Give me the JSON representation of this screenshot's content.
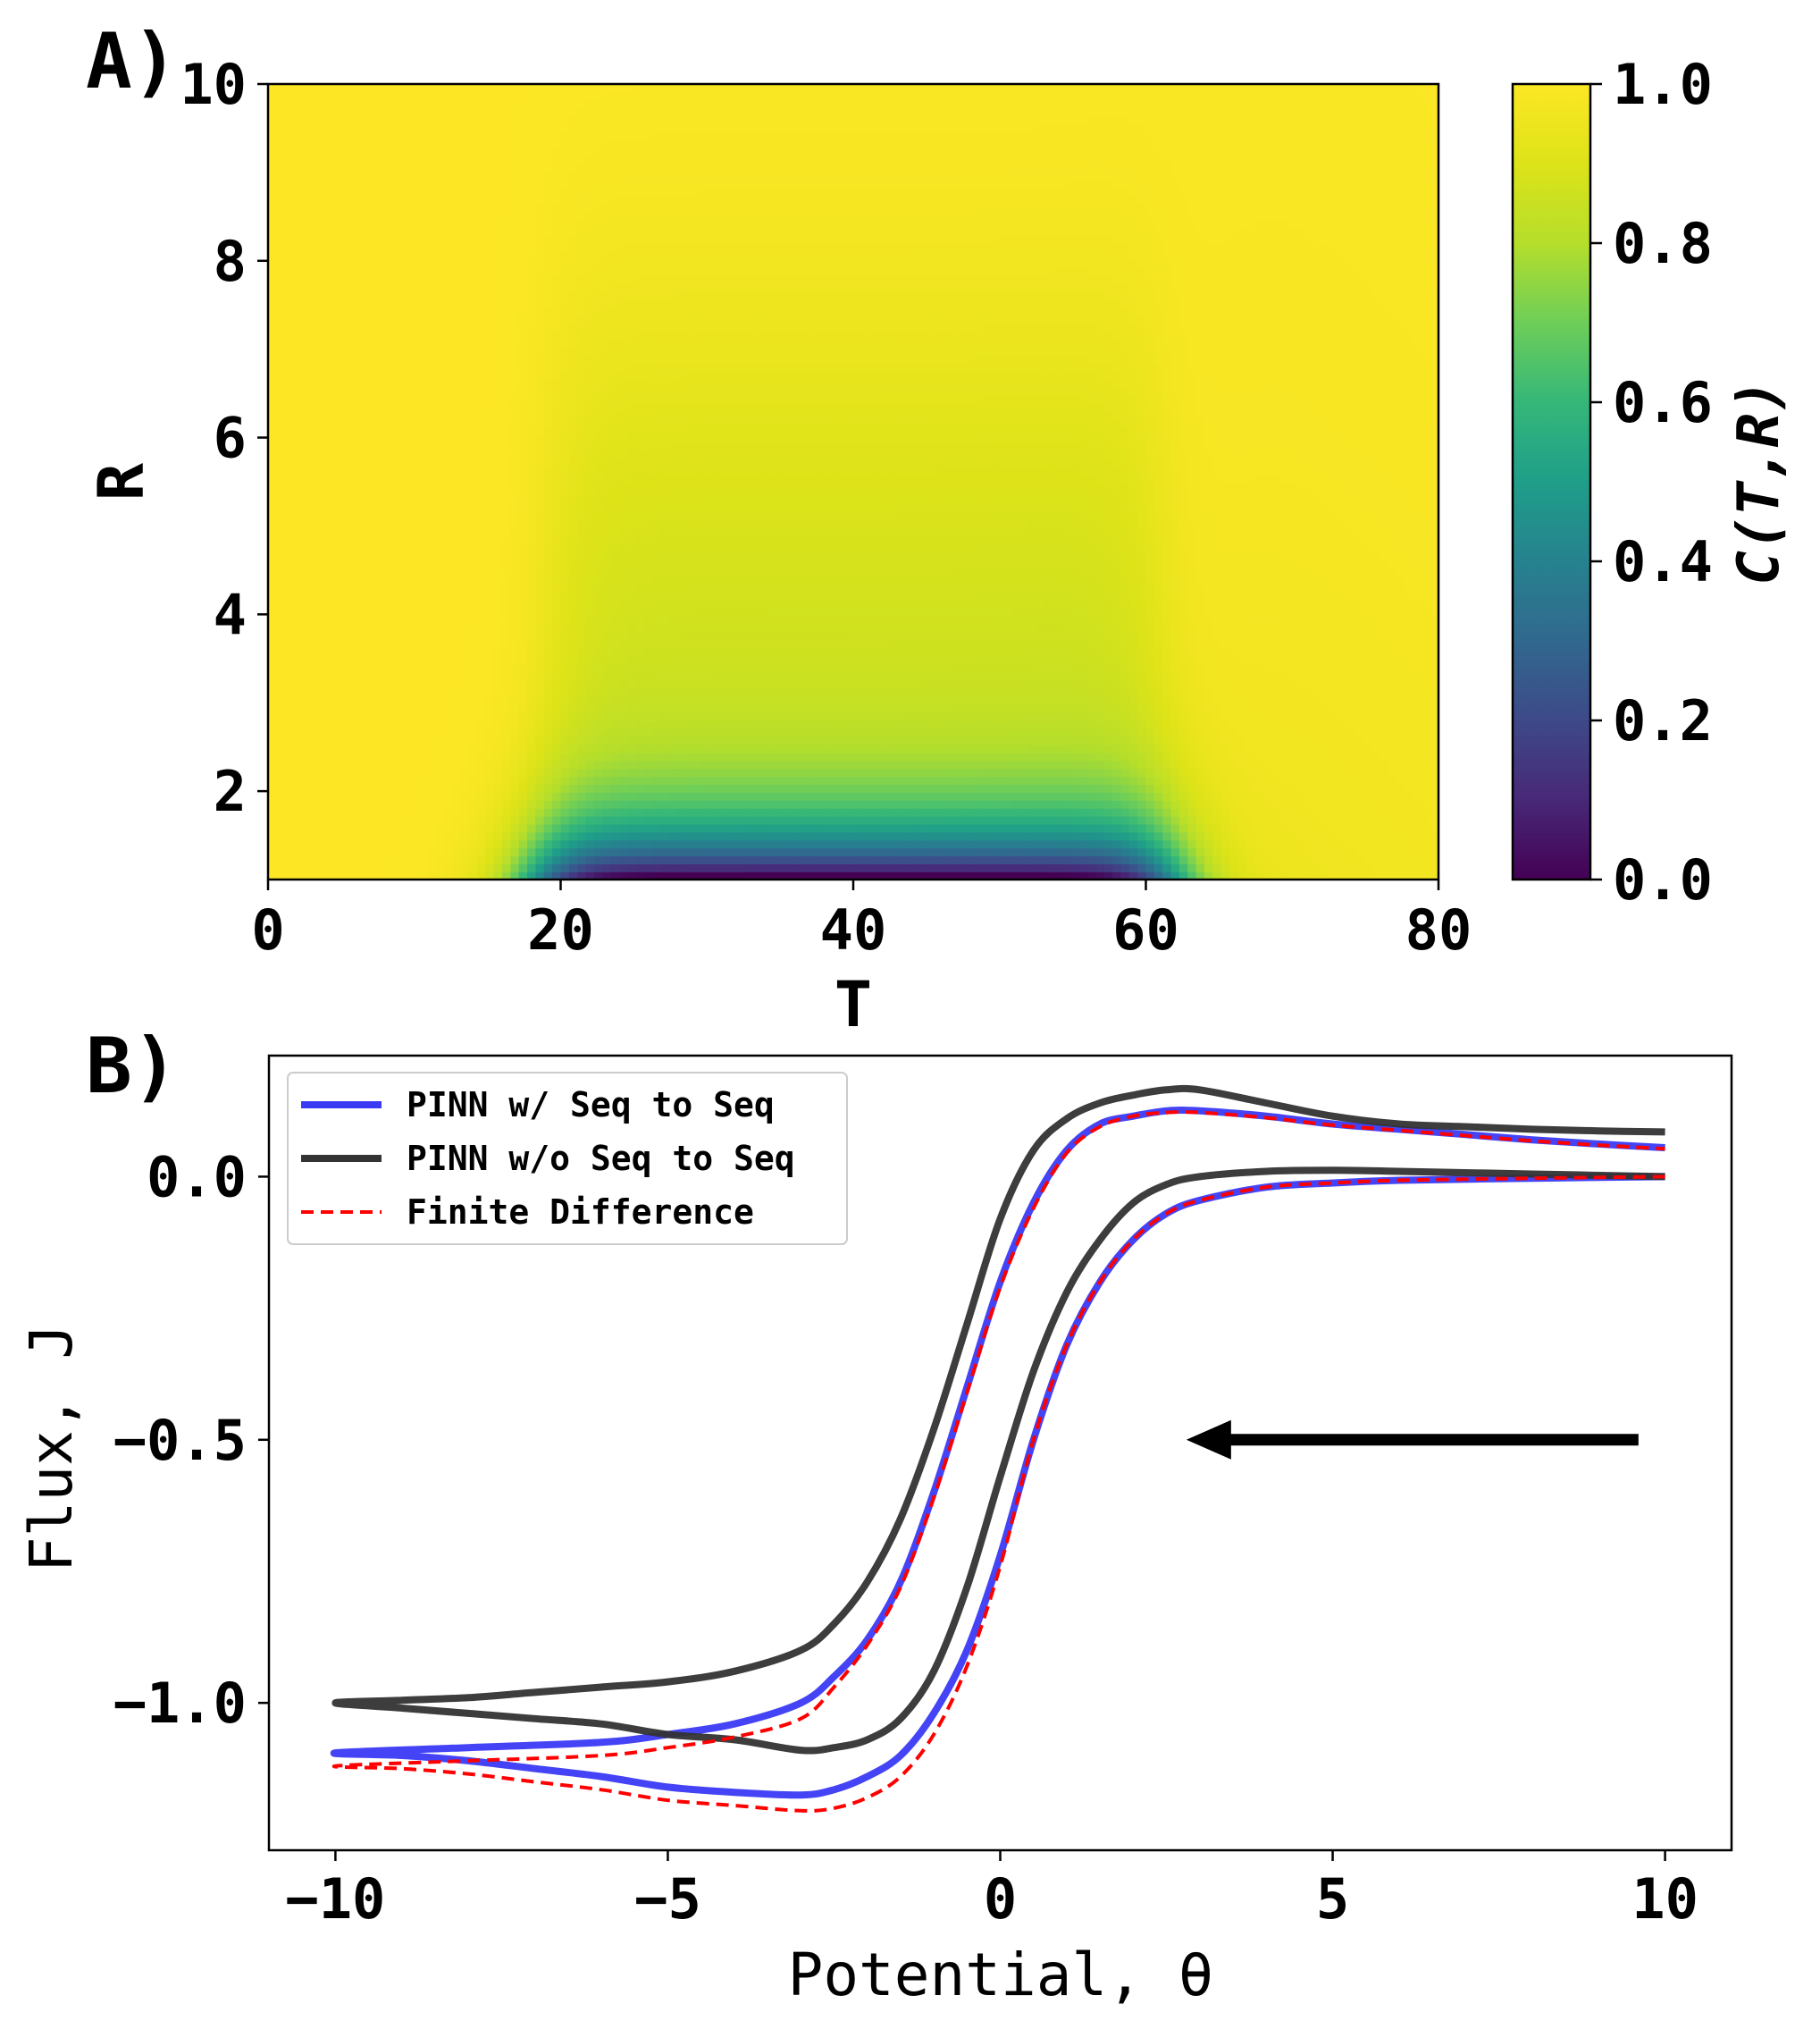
{
  "chart_data": [
    {
      "panel_label": "A)",
      "type": "heatmap",
      "xlabel": "T",
      "ylabel": "R",
      "xlim": [
        0,
        80
      ],
      "ylim": [
        1,
        10
      ],
      "xticks": [
        0,
        20,
        40,
        60,
        80
      ],
      "xtick_labels": [
        "0",
        "20",
        "40",
        "60",
        "80"
      ],
      "yticks": [
        2,
        4,
        6,
        8,
        10
      ],
      "ytick_labels": [
        "2",
        "4",
        "6",
        "8",
        "10"
      ],
      "colormap": "viridis",
      "colorbar": {
        "label": "C(T,R)",
        "range": [
          0,
          1
        ],
        "ticks": [
          0,
          0.2,
          0.4,
          0.6,
          0.8,
          1.0
        ],
        "tick_labels": [
          "0.0",
          "0.2",
          "0.4",
          "0.6",
          "0.8",
          "1.0"
        ]
      },
      "depletion_region": {
        "T_start": 18,
        "T_end": 62,
        "min_value_at_R1": 0.0
      }
    },
    {
      "panel_label": "B)",
      "type": "line",
      "xlabel": "Potential, θ",
      "ylabel": "Flux, J",
      "xlim": [
        -11,
        11
      ],
      "ylim": [
        -1.28,
        0.23
      ],
      "xticks": [
        -10,
        -5,
        0,
        5,
        10
      ],
      "xtick_labels": [
        "−10",
        "−5",
        "0",
        "5",
        "10"
      ],
      "yticks": [
        -1.0,
        -0.5,
        0.0
      ],
      "ytick_labels": [
        "−1.0",
        "−0.5",
        "0.0"
      ],
      "legend_position": "upper-left",
      "arrow": {
        "from": [
          9.6,
          -0.5
        ],
        "to": [
          2.8,
          -0.5
        ],
        "color": "#000000"
      },
      "series": [
        {
          "name": "PINN w/ Seq to Seq",
          "color": "#3a3af5",
          "style": "solid",
          "forward": [
            [
              10,
              0
            ],
            [
              8,
              -0.003
            ],
            [
              6,
              -0.007
            ],
            [
              5,
              -0.012
            ],
            [
              4,
              -0.02
            ],
            [
              3,
              -0.045
            ],
            [
              2.5,
              -0.07
            ],
            [
              2,
              -0.12
            ],
            [
              1.5,
              -0.2
            ],
            [
              1,
              -0.32
            ],
            [
              0.5,
              -0.5
            ],
            [
              0,
              -0.72
            ],
            [
              -0.5,
              -0.9
            ],
            [
              -1,
              -1.02
            ],
            [
              -1.5,
              -1.1
            ],
            [
              -2,
              -1.14
            ],
            [
              -2.5,
              -1.165
            ],
            [
              -3,
              -1.175
            ],
            [
              -4,
              -1.17
            ],
            [
              -5,
              -1.16
            ],
            [
              -6,
              -1.14
            ],
            [
              -7,
              -1.125
            ],
            [
              -8,
              -1.11
            ],
            [
              -9,
              -1.1
            ],
            [
              -10,
              -1.095
            ]
          ],
          "reverse": [
            [
              -10,
              -1.095
            ],
            [
              -8,
              -1.085
            ],
            [
              -6,
              -1.075
            ],
            [
              -5,
              -1.06
            ],
            [
              -4,
              -1.04
            ],
            [
              -3,
              -1.0
            ],
            [
              -2.5,
              -0.95
            ],
            [
              -2,
              -0.88
            ],
            [
              -1.5,
              -0.77
            ],
            [
              -1,
              -0.6
            ],
            [
              -0.5,
              -0.4
            ],
            [
              0,
              -0.2
            ],
            [
              0.5,
              -0.05
            ],
            [
              1,
              0.05
            ],
            [
              1.5,
              0.1
            ],
            [
              2,
              0.115
            ],
            [
              2.5,
              0.125
            ],
            [
              3,
              0.125
            ],
            [
              4,
              0.115
            ],
            [
              5,
              0.1
            ],
            [
              6,
              0.09
            ],
            [
              7,
              0.08
            ],
            [
              8,
              0.07
            ],
            [
              9,
              0.062
            ],
            [
              10,
              0.055
            ]
          ]
        },
        {
          "name": "PINN w/o Seq to Seq",
          "color": "#333333",
          "style": "solid",
          "forward": [
            [
              10,
              0
            ],
            [
              8,
              0.005
            ],
            [
              6,
              0.01
            ],
            [
              5,
              0.012
            ],
            [
              4,
              0.01
            ],
            [
              3,
              0.0
            ],
            [
              2.5,
              -0.015
            ],
            [
              2,
              -0.05
            ],
            [
              1.5,
              -0.12
            ],
            [
              1,
              -0.22
            ],
            [
              0.5,
              -0.37
            ],
            [
              0,
              -0.57
            ],
            [
              -0.5,
              -0.78
            ],
            [
              -1,
              -0.94
            ],
            [
              -1.5,
              -1.03
            ],
            [
              -2,
              -1.07
            ],
            [
              -2.5,
              -1.085
            ],
            [
              -3,
              -1.09
            ],
            [
              -4,
              -1.07
            ],
            [
              -5,
              -1.06
            ],
            [
              -6,
              -1.04
            ],
            [
              -7,
              -1.03
            ],
            [
              -8,
              -1.02
            ],
            [
              -9,
              -1.01
            ],
            [
              -10,
              -1.0
            ]
          ],
          "reverse": [
            [
              -10,
              -1.0
            ],
            [
              -9,
              -0.995
            ],
            [
              -8,
              -0.99
            ],
            [
              -7,
              -0.98
            ],
            [
              -6,
              -0.97
            ],
            [
              -5,
              -0.96
            ],
            [
              -4,
              -0.94
            ],
            [
              -3,
              -0.9
            ],
            [
              -2.5,
              -0.85
            ],
            [
              -2,
              -0.77
            ],
            [
              -1.5,
              -0.65
            ],
            [
              -1,
              -0.48
            ],
            [
              -0.5,
              -0.28
            ],
            [
              0,
              -0.08
            ],
            [
              0.5,
              0.05
            ],
            [
              1,
              0.11
            ],
            [
              1.5,
              0.14
            ],
            [
              2,
              0.155
            ],
            [
              2.5,
              0.165
            ],
            [
              3,
              0.165
            ],
            [
              4,
              0.14
            ],
            [
              5,
              0.115
            ],
            [
              6,
              0.1
            ],
            [
              7,
              0.095
            ],
            [
              8,
              0.09
            ],
            [
              9,
              0.087
            ],
            [
              10,
              0.085
            ]
          ]
        },
        {
          "name": "Finite Difference",
          "color": "#ff0000",
          "style": "dashed",
          "forward": [
            [
              10,
              0
            ],
            [
              8,
              -0.003
            ],
            [
              6,
              -0.007
            ],
            [
              5,
              -0.012
            ],
            [
              4,
              -0.02
            ],
            [
              3,
              -0.045
            ],
            [
              2.5,
              -0.07
            ],
            [
              2,
              -0.12
            ],
            [
              1.5,
              -0.2
            ],
            [
              1,
              -0.32
            ],
            [
              0.5,
              -0.5
            ],
            [
              0,
              -0.74
            ],
            [
              -0.5,
              -0.93
            ],
            [
              -1,
              -1.06
            ],
            [
              -1.5,
              -1.14
            ],
            [
              -2,
              -1.18
            ],
            [
              -2.5,
              -1.2
            ],
            [
              -3,
              -1.205
            ],
            [
              -4,
              -1.195
            ],
            [
              -5,
              -1.185
            ],
            [
              -6,
              -1.165
            ],
            [
              -7,
              -1.15
            ],
            [
              -8,
              -1.135
            ],
            [
              -9,
              -1.125
            ],
            [
              -10,
              -1.12
            ]
          ],
          "reverse": [
            [
              -10,
              -1.12
            ],
            [
              -8,
              -1.11
            ],
            [
              -6,
              -1.1
            ],
            [
              -5,
              -1.085
            ],
            [
              -4,
              -1.065
            ],
            [
              -3,
              -1.03
            ],
            [
              -2.5,
              -0.97
            ],
            [
              -2,
              -0.89
            ],
            [
              -1.5,
              -0.78
            ],
            [
              -1,
              -0.61
            ],
            [
              -0.5,
              -0.41
            ],
            [
              0,
              -0.21
            ],
            [
              0.5,
              -0.06
            ],
            [
              1,
              0.045
            ],
            [
              1.5,
              0.095
            ],
            [
              2,
              0.115
            ],
            [
              2.5,
              0.122
            ],
            [
              3,
              0.122
            ],
            [
              4,
              0.112
            ],
            [
              5,
              0.098
            ],
            [
              6,
              0.088
            ],
            [
              7,
              0.078
            ],
            [
              8,
              0.068
            ],
            [
              9,
              0.06
            ],
            [
              10,
              0.053
            ]
          ]
        }
      ]
    }
  ]
}
